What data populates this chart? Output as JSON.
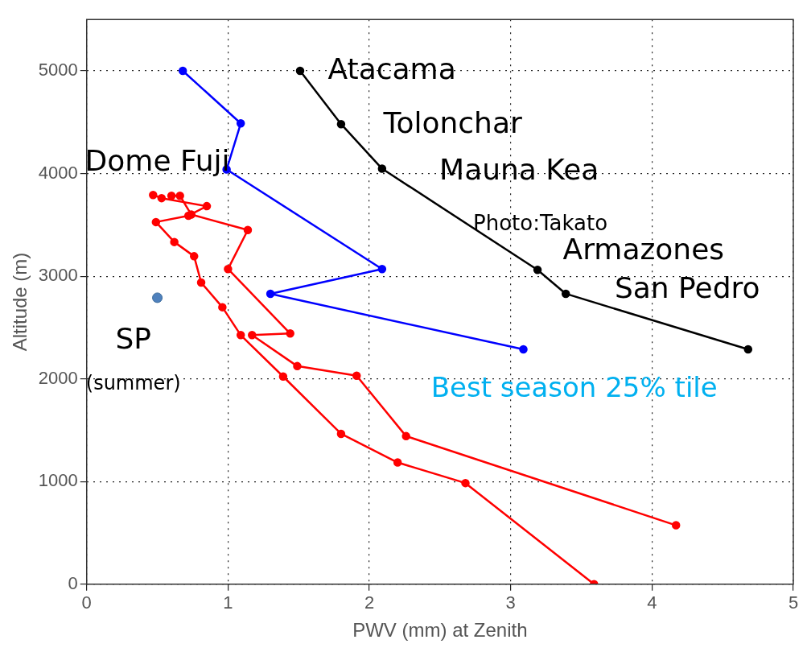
{
  "chart_data": {
    "type": "line",
    "xlabel": "PWV (mm) at Zenith",
    "ylabel": "Altitude (m)",
    "xlim": [
      0,
      5
    ],
    "xticks": [
      0,
      1,
      2,
      3,
      4,
      5
    ],
    "ylim": [
      0,
      5500
    ],
    "yticks": [
      0,
      1000,
      2000,
      3000,
      4000,
      5000
    ],
    "grid": true,
    "legend": false,
    "marker": "circle",
    "line_style": "solid",
    "series": [
      {
        "color": "#000000",
        "x": [
          1.51,
          1.8,
          2.09,
          3.19,
          3.39,
          4.68
        ],
        "values": [
          5000,
          4481,
          4047,
          3062,
          2829,
          2287
        ]
      },
      {
        "color": "#0000ff",
        "x": [
          0.68,
          1.09,
          0.99,
          2.09,
          1.3,
          3.09
        ],
        "values": [
          5000,
          4488,
          4039,
          3070,
          2829,
          2287
        ]
      },
      {
        "color": "#ff0000",
        "x": [
          3.59,
          2.68,
          2.2,
          1.8,
          1.39,
          1.09,
          0.96,
          0.81,
          0.76,
          0.62,
          0.49,
          0.72,
          0.85,
          0.53,
          0.47
        ],
        "values": [
          0,
          985,
          1186,
          1465,
          2023,
          2426,
          2698,
          2938,
          3194,
          3333,
          3527,
          3589,
          3682,
          3760,
          3791
        ]
      },
      {
        "color": "#ff0000",
        "x": [
          4.17,
          2.26,
          1.91,
          1.49,
          1.17,
          1.44,
          1.0,
          1.14,
          0.74,
          0.66,
          0.6
        ],
        "values": [
          574,
          1442,
          2031,
          2124,
          2426,
          2442,
          3070,
          3450,
          3600,
          3783,
          3783
        ]
      },
      {
        "type": "scatter",
        "color": "#4f81bd",
        "x": [
          0.5
        ],
        "values": [
          2790
        ]
      }
    ],
    "annotations": [
      "Atacama",
      "Tolonchar",
      "Mauna Kea",
      "Photo:Takato",
      "Armazones",
      "San Pedro",
      "Dome Fuji",
      "SP",
      "(summer)",
      "Best season 25% tile"
    ]
  }
}
